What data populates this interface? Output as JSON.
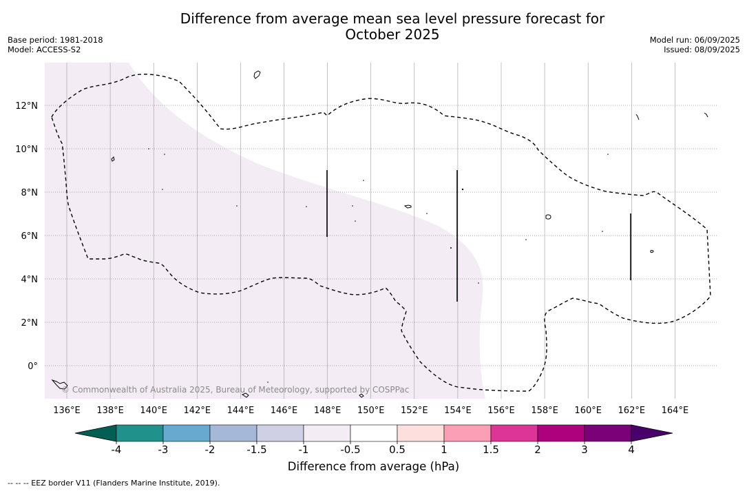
{
  "header": {
    "title_line1": "Difference from average mean sea level pressure forecast for",
    "title_line2": "October 2025",
    "base_period": "Base period: 1981-2018",
    "model": "Model: ACCESS-S2",
    "model_run": "Model run: 06/09/2025",
    "issued": "Issued: 08/09/2025"
  },
  "map": {
    "lon_ticks": [
      "136°E",
      "138°E",
      "140°E",
      "142°E",
      "144°E",
      "146°E",
      "148°E",
      "150°E",
      "152°E",
      "154°E",
      "156°E",
      "158°E",
      "160°E",
      "162°E",
      "164°E"
    ],
    "lat_ticks": [
      "12°N",
      "10°N",
      "8°N",
      "6°N",
      "4°N",
      "2°N",
      "0°"
    ],
    "copyright": "© Commonwealth of Australia 2025, Bureau of Meteorology, supported by COSPPac",
    "anomaly_fill_color": "#f3ecf5",
    "anomaly_category": "-1 to -0.5"
  },
  "colorbar": {
    "tick_labels": [
      "-4",
      "-3",
      "-2",
      "-1.5",
      "-1",
      "-0.5",
      "0.5",
      "1",
      "1.5",
      "2",
      "3",
      "4"
    ],
    "colors": [
      "#005f52",
      "#21918c",
      "#67a9cf",
      "#a6b8d8",
      "#cfd0e4",
      "#f3ecf5",
      "#ffffff",
      "#fde0dd",
      "#fa9fb5",
      "#dd3497",
      "#ae017e",
      "#7a0177",
      "#49006a"
    ],
    "title": "Difference from average (hPa)"
  },
  "footnote": "--  --  -- EEZ border V11 (Flanders Marine Institute, 2019)."
}
